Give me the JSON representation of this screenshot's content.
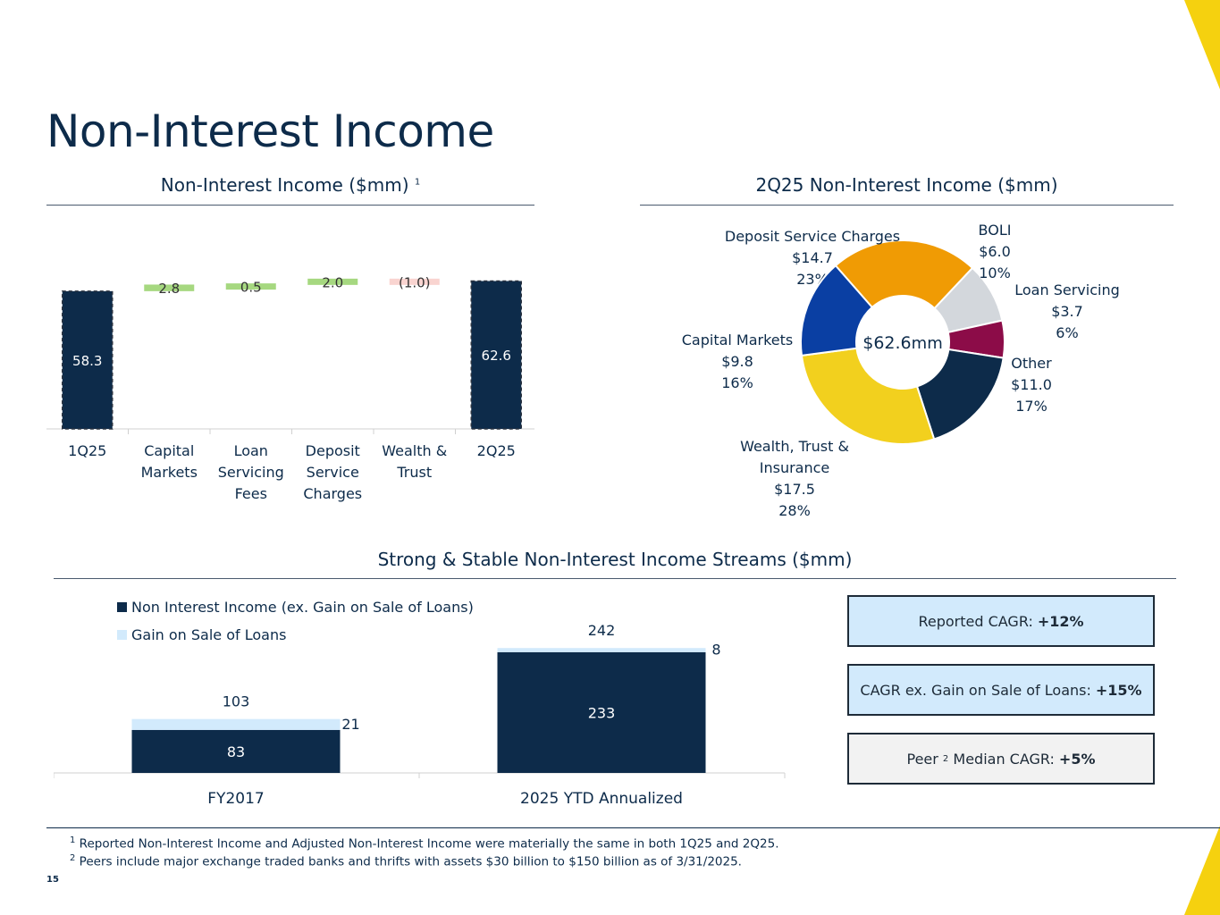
{
  "page": {
    "title": "Non-Interest Income",
    "page_number": "15",
    "colors": {
      "navy": "#0d2b4a",
      "accent_yellow": "#f5d10f"
    }
  },
  "waterfall": {
    "title": "Non-Interest Income ($mm)",
    "title_sup": "1",
    "colors": {
      "total": "#0d2b4a",
      "increase": "#a6d880",
      "decrease": "#f9d4d0"
    }
  },
  "donut": {
    "title": "2Q25 Non-Interest Income ($mm)",
    "center_value": "$62.6",
    "center_unit": "mm",
    "colors": [
      "#f09b04",
      "#d3d7dc",
      "#8c0c48",
      "#0d2b4a",
      "#f2d01e",
      "#0a3fa3"
    ]
  },
  "streams": {
    "title": "Strong & Stable Non-Interest Income Streams ($mm)",
    "colors": {
      "base": "#0d2b4a",
      "gain": "#d2eafc"
    }
  },
  "cagr_boxes": [
    {
      "label": "Reported CAGR:",
      "value": "+12%",
      "bg": "#d2eafc"
    },
    {
      "label": "CAGR ex. Gain on Sale of Loans:",
      "value": "+15%",
      "bg": "#d2eafc"
    },
    {
      "label_pre": "Peer",
      "label_sup": "2",
      "label_post": "Median CAGR:",
      "value": "+5%",
      "bg": "#f2f2f2"
    }
  ],
  "footnotes": [
    {
      "sup": "1",
      "text": "Reported Non-Interest Income and Adjusted Non-Interest Income were materially the same in both 1Q25 and 2Q25."
    },
    {
      "sup": "2",
      "text": "Peers include major exchange traded banks and thrifts with assets $30 billion to $150 billion as of 3/31/2025."
    }
  ],
  "chart_data": [
    {
      "type": "bar",
      "subtype": "waterfall",
      "title": "Non-Interest Income ($mm)",
      "categories": [
        [
          "1Q25"
        ],
        [
          "Capital",
          "Markets"
        ],
        [
          "Loan",
          "Servicing",
          "Fees"
        ],
        [
          "Deposit",
          "Service",
          "Charges"
        ],
        [
          "Wealth &",
          "Trust"
        ],
        [
          "2Q25"
        ]
      ],
      "values": [
        58.3,
        2.8,
        0.5,
        2.0,
        -1.0,
        62.6
      ],
      "labels": [
        "58.3",
        "2.8",
        "0.5",
        "2.0",
        "(1.0)",
        "62.6"
      ],
      "kinds": [
        "total",
        "increase",
        "increase",
        "increase",
        "decrease",
        "total"
      ],
      "ylim": [
        0,
        64.3
      ]
    },
    {
      "type": "pie",
      "subtype": "donut",
      "title": "2Q25 Non-Interest Income ($mm)",
      "slices": [
        {
          "lines": [
            "Deposit Service Charges",
            "$14.7",
            "23%"
          ],
          "value": 14.7
        },
        {
          "lines": [
            "BOLI",
            "$6.0",
            "10%"
          ],
          "value": 6.0
        },
        {
          "lines": [
            "Loan Servicing",
            "$3.7",
            "6%"
          ],
          "value": 3.7
        },
        {
          "lines": [
            "Other",
            "$11.0",
            "17%"
          ],
          "value": 11.0
        },
        {
          "lines": [
            "Wealth, Trust &",
            "Insurance",
            "$17.5",
            "28%"
          ],
          "value": 17.5
        },
        {
          "lines": [
            "Capital Markets",
            "$9.8",
            "16%"
          ],
          "value": 9.8
        }
      ]
    },
    {
      "type": "bar",
      "subtype": "stacked",
      "title": "Strong & Stable Non-Interest Income Streams ($mm)",
      "categories": [
        "FY2017",
        "2025 YTD Annualized"
      ],
      "series": [
        {
          "name": "Non Interest Income (ex. Gain on Sale of Loans)",
          "values": [
            83,
            233
          ],
          "labels": [
            "83",
            "233"
          ]
        },
        {
          "name": "Gain on Sale of Loans",
          "values": [
            21,
            8
          ],
          "labels": [
            "21",
            "8"
          ]
        }
      ],
      "totals": [
        "103",
        "242"
      ],
      "legend": "top-left",
      "ylim": [
        0,
        260
      ]
    }
  ]
}
